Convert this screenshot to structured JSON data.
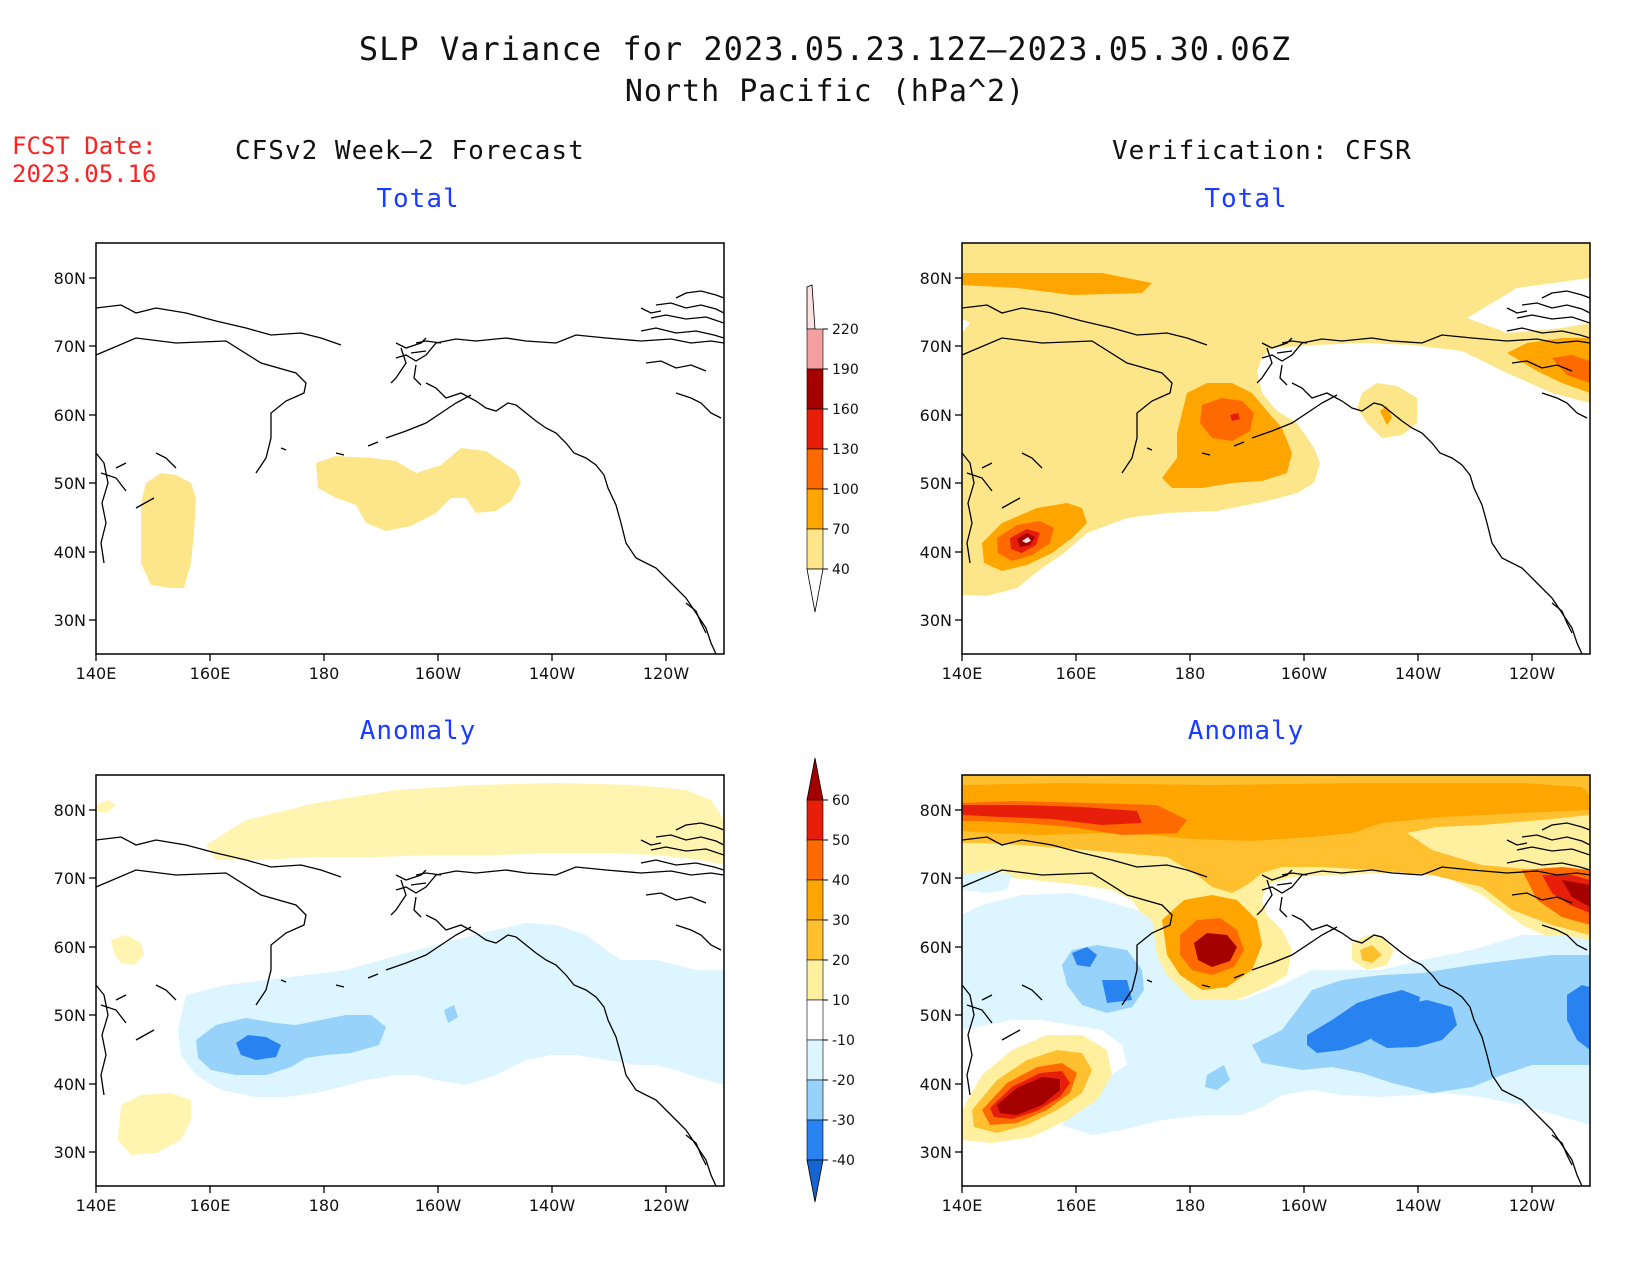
{
  "header": {
    "title_line1": "SLP Variance for 2023.05.23.12Z–2023.05.30.06Z",
    "title_line2": "North Pacific (hPa^2)",
    "fcst_label": "FCST Date:",
    "fcst_date": "2023.05.16"
  },
  "columns": {
    "left": "CFSv2 Week–2 Forecast",
    "right": "Verification: CFSR"
  },
  "panels": [
    {
      "id": "forecast-total",
      "title": "Total"
    },
    {
      "id": "verification-total",
      "title": "Total"
    },
    {
      "id": "forecast-anomaly",
      "title": "Anomaly"
    },
    {
      "id": "verification-anomaly",
      "title": "Anomaly"
    }
  ],
  "axes": {
    "lon_ticks": [
      "140E",
      "160E",
      "180",
      "160W",
      "140W",
      "120W"
    ],
    "lat_ticks": [
      "80N",
      "70N",
      "60N",
      "50N",
      "40N",
      "30N"
    ]
  },
  "colorbars": {
    "total": {
      "levels": [
        "40",
        "70",
        "100",
        "130",
        "160",
        "190",
        "220"
      ],
      "colors": [
        "#fde68a",
        "#ffa500",
        "#ff6a00",
        "#e61e0a",
        "#a50000",
        "#f4a0a0",
        "#fde0e0"
      ]
    },
    "anomaly": {
      "levels": [
        "-40",
        "-30",
        "-20",
        "-10",
        "10",
        "20",
        "30",
        "40",
        "50",
        "60"
      ],
      "colors": [
        "#1464d2",
        "#2882f0",
        "#96d2fa",
        "#dcf5ff",
        "#ffffff",
        "#fff0a0",
        "#ffc030",
        "#ffa500",
        "#ff6a00",
        "#e61e0a",
        "#a50000"
      ]
    }
  }
}
